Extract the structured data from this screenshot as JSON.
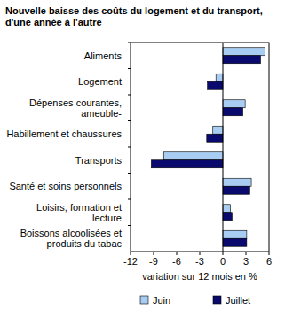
{
  "chart_data": {
    "type": "bar",
    "orientation": "horizontal",
    "title": "Nouvelle baisse des coûts du logement et du transport, d'une année à l'autre",
    "categories": [
      "Aliments",
      "Logement",
      "Dépenses courantes, ameuble-",
      "Habillement et chaussures",
      "Transports",
      "Santé et soins personnels",
      "Loisirs, formation et lecture",
      "Boissons alcoolisées et produits du tabac"
    ],
    "series": [
      {
        "name": "Juin",
        "color": "#a9cdf2",
        "values": [
          5.5,
          -0.9,
          2.9,
          -1.3,
          -7.7,
          3.7,
          1.0,
          3.1
        ]
      },
      {
        "name": "Juillet",
        "color": "#0a0a6e",
        "values": [
          4.9,
          -2.0,
          2.6,
          -2.1,
          -9.3,
          3.5,
          1.2,
          3.1
        ]
      }
    ],
    "x_label": "variation sur 12 mois en %",
    "xlim": [
      -12,
      6
    ],
    "xticks": [
      -12,
      -9,
      -6,
      -3,
      0,
      3,
      6
    ],
    "grid": false,
    "legend": "bottom"
  }
}
